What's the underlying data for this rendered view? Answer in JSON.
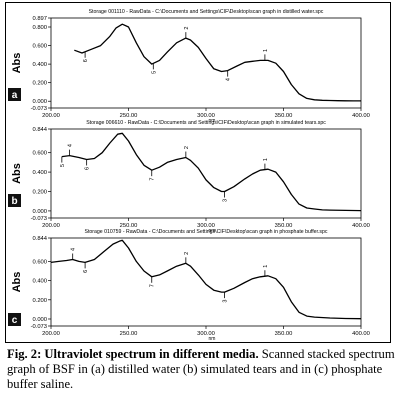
{
  "chart_data": [
    {
      "type": "line",
      "panel_label": "a",
      "title": "Storage 001110 - RawData - C:\\Documents and Settings\\CIF\\Desktop\\scan graph in distilled water.spc",
      "xlabel": "nm",
      "ylabel": "Abs",
      "xlim": [
        200.0,
        400.0
      ],
      "ylim": [
        -0.073,
        0.897
      ],
      "x_ticks": [
        "200.00",
        "250.00",
        "300.00",
        "350.00",
        "400.00"
      ],
      "y_ticks": [
        "0.897",
        "0.800",
        "0.600",
        "0.400",
        "0.200",
        "0.000",
        "-0.073"
      ],
      "y_tick_values": [
        0.897,
        0.8,
        0.6,
        0.4,
        0.2,
        0.0,
        -0.073
      ],
      "series": [
        {
          "x": [
            215,
            220,
            226,
            232,
            238,
            242,
            246,
            250,
            255,
            260,
            265,
            270,
            275,
            281,
            287,
            290,
            295,
            300,
            305,
            310,
            314,
            320,
            325,
            330,
            335,
            340,
            345,
            350,
            355,
            360,
            365,
            370,
            375,
            380,
            385,
            390,
            395,
            400
          ],
          "values": [
            0.55,
            0.52,
            0.56,
            0.6,
            0.7,
            0.79,
            0.83,
            0.8,
            0.63,
            0.48,
            0.4,
            0.44,
            0.53,
            0.63,
            0.68,
            0.66,
            0.58,
            0.46,
            0.35,
            0.32,
            0.33,
            0.38,
            0.42,
            0.43,
            0.44,
            0.44,
            0.41,
            0.32,
            0.18,
            0.08,
            0.03,
            0.015,
            0.01,
            0.008,
            0.006,
            0.005,
            0.004,
            0.003
          ]
        }
      ],
      "peak_markers": [
        {
          "x": 222,
          "label": "6",
          "position": "below"
        },
        {
          "x": 266,
          "label": "5",
          "position": "below"
        },
        {
          "x": 287,
          "label": "2",
          "position": "above"
        },
        {
          "x": 314,
          "label": "4",
          "position": "below"
        },
        {
          "x": 338,
          "label": "1",
          "position": "above"
        }
      ]
    },
    {
      "type": "line",
      "panel_label": "b",
      "title": "Storage 006610 - RawData - C:\\Documents and Settings\\CIF\\Desktop\\scan graph in simulated tears.spc",
      "xlabel": "nm",
      "ylabel": "Abs",
      "xlim": [
        200.0,
        400.0
      ],
      "ylim": [
        -0.073,
        0.844
      ],
      "x_ticks": [
        "200.00",
        "250.00",
        "300.00",
        "350.00",
        "400.00"
      ],
      "y_ticks": [
        "0.844",
        "0.600",
        "0.400",
        "0.200",
        "0.000",
        "-0.073"
      ],
      "y_tick_values": [
        0.844,
        0.6,
        0.4,
        0.2,
        0.0,
        -0.073
      ],
      "series": [
        {
          "x": [
            207,
            212,
            218,
            223,
            228,
            233,
            238,
            243,
            246,
            250,
            255,
            260,
            265,
            270,
            275,
            281,
            287,
            290,
            295,
            300,
            305,
            310,
            312,
            318,
            325,
            330,
            335,
            340,
            345,
            350,
            355,
            360,
            365,
            370,
            375,
            380,
            390,
            400
          ],
          "values": [
            0.56,
            0.57,
            0.55,
            0.53,
            0.54,
            0.6,
            0.7,
            0.79,
            0.8,
            0.72,
            0.58,
            0.47,
            0.42,
            0.45,
            0.5,
            0.53,
            0.55,
            0.52,
            0.44,
            0.32,
            0.24,
            0.2,
            0.2,
            0.25,
            0.33,
            0.38,
            0.42,
            0.43,
            0.4,
            0.3,
            0.17,
            0.07,
            0.03,
            0.02,
            0.01,
            0.008,
            0.005,
            0.003
          ]
        }
      ],
      "peak_markers": [
        {
          "x": 207,
          "label": "5",
          "position": "below"
        },
        {
          "x": 212,
          "label": "4",
          "position": "above"
        },
        {
          "x": 223,
          "label": "6",
          "position": "below"
        },
        {
          "x": 265,
          "label": "7",
          "position": "below"
        },
        {
          "x": 287,
          "label": "2",
          "position": "above"
        },
        {
          "x": 312,
          "label": "3",
          "position": "below"
        },
        {
          "x": 338,
          "label": "1",
          "position": "above"
        }
      ]
    },
    {
      "type": "line",
      "panel_label": "c",
      "title": "Storage 010759 - RawData - C:\\Documents and Settings\\CIF\\Desktop\\scan graph in phosphate buffer.spc",
      "xlabel": "nm",
      "ylabel": "Abs",
      "xlim": [
        200.0,
        400.0
      ],
      "ylim": [
        -0.073,
        0.844
      ],
      "x_ticks": [
        "200.00",
        "250.00",
        "300.00",
        "350.00",
        "400.00"
      ],
      "y_ticks": [
        "0.844",
        "0.600",
        "0.400",
        "0.200",
        "0.000",
        "-0.073"
      ],
      "y_tick_values": [
        0.844,
        0.6,
        0.4,
        0.2,
        0.0,
        -0.073
      ],
      "series": [
        {
          "x": [
            200,
            205,
            210,
            214,
            218,
            222,
            228,
            234,
            240,
            244,
            246,
            250,
            255,
            260,
            265,
            270,
            275,
            281,
            287,
            290,
            295,
            300,
            305,
            310,
            312,
            318,
            325,
            330,
            335,
            340,
            345,
            350,
            355,
            360,
            365,
            370,
            380,
            390,
            400
          ],
          "values": [
            0.59,
            0.6,
            0.61,
            0.62,
            0.6,
            0.59,
            0.62,
            0.7,
            0.78,
            0.81,
            0.82,
            0.74,
            0.6,
            0.5,
            0.44,
            0.46,
            0.5,
            0.55,
            0.58,
            0.55,
            0.46,
            0.36,
            0.3,
            0.28,
            0.28,
            0.32,
            0.38,
            0.42,
            0.44,
            0.45,
            0.42,
            0.33,
            0.18,
            0.07,
            0.03,
            0.02,
            0.01,
            0.005,
            0.003
          ]
        }
      ],
      "peak_markers": [
        {
          "x": 214,
          "label": "4",
          "position": "above"
        },
        {
          "x": 222,
          "label": "6",
          "position": "below"
        },
        {
          "x": 265,
          "label": "7",
          "position": "below"
        },
        {
          "x": 287,
          "label": "2",
          "position": "above"
        },
        {
          "x": 312,
          "label": "3",
          "position": "below"
        },
        {
          "x": 338,
          "label": "1",
          "position": "above"
        }
      ]
    }
  ],
  "caption": {
    "lead": "Fig. 2: Ultraviolet spectrum in different media.",
    "text": "Scanned stacked spectrum graph of BSF in (a) distilled water (b) simulated tears and in (c) phosphate buffer saline."
  }
}
